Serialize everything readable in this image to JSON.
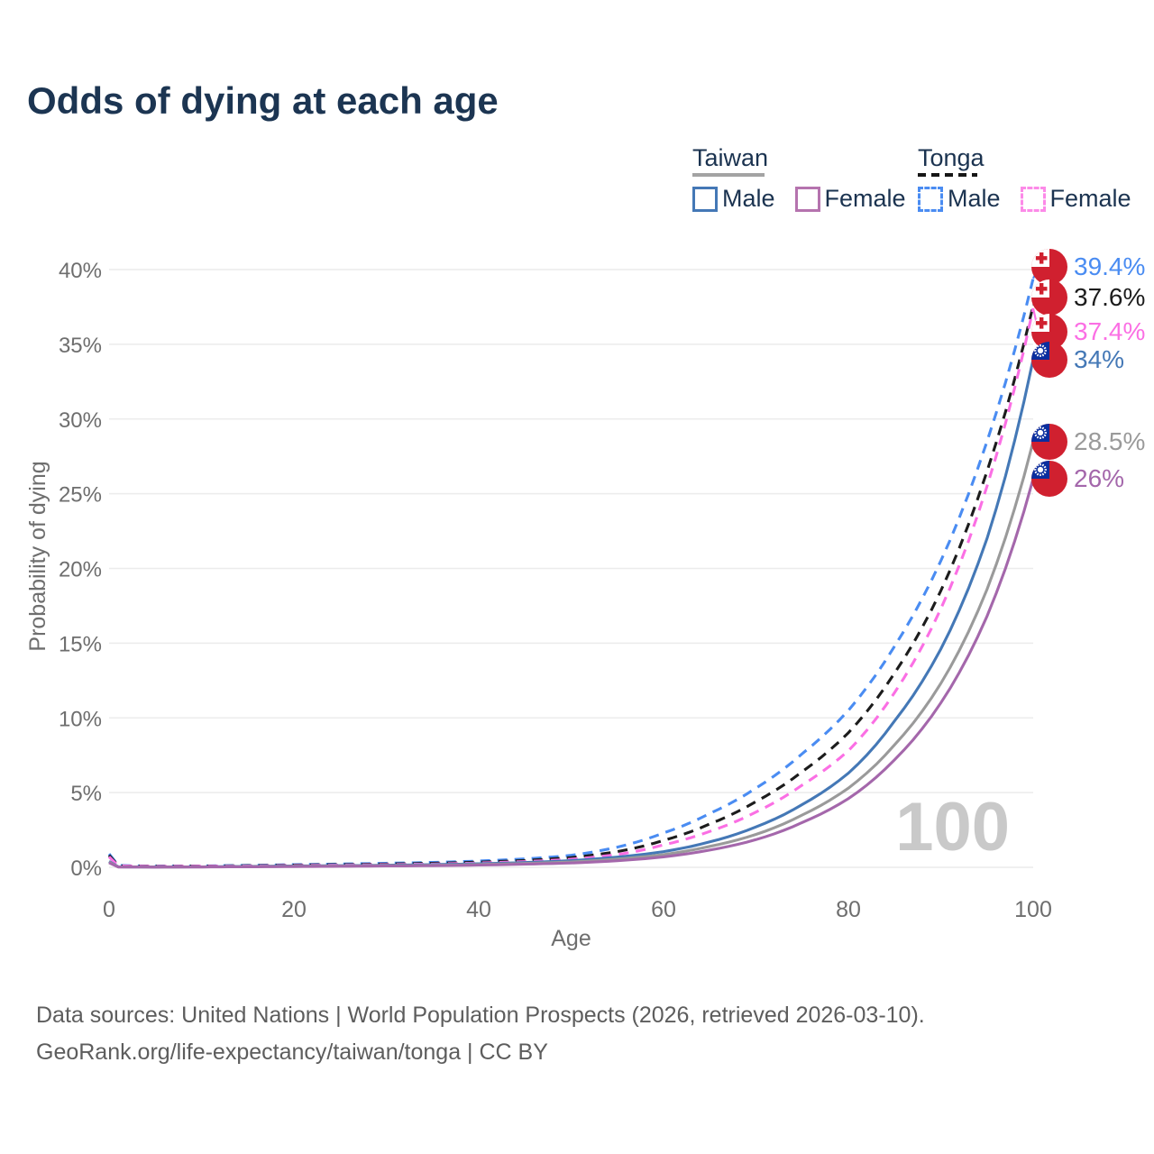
{
  "title": "Odds of dying at each age",
  "legend": {
    "groups": [
      {
        "country": "Taiwan",
        "style": "solid",
        "underline_color": "#a3a3a3",
        "items": [
          {
            "label": "Male",
            "color": "#4478b6"
          },
          {
            "label": "Female",
            "color": "#b573ae"
          }
        ]
      },
      {
        "country": "Tonga",
        "style": "dashed",
        "underline_color": "#161616",
        "items": [
          {
            "label": "Male",
            "color": "#4a8cf2"
          },
          {
            "label": "Female",
            "color": "#fc8ae8"
          }
        ]
      }
    ]
  },
  "watermark": "100",
  "footer": {
    "line1": "Data sources: United Nations | World Population Prospects (2026, retrieved 2026-03-10).",
    "line2": "GeoRank.org/life-expectancy/taiwan/tonga | CC BY"
  },
  "chart_data": {
    "type": "line",
    "title": "Odds of dying at each age",
    "xlabel": "Age",
    "ylabel": "Probability of dying",
    "xlim": [
      0,
      100
    ],
    "ylim": [
      0,
      40
    ],
    "x_ticks": [
      0,
      20,
      40,
      60,
      80,
      100
    ],
    "y_ticks_pct": [
      0,
      5,
      10,
      15,
      20,
      25,
      30,
      35,
      40
    ],
    "grid": true,
    "legend_position": "top-right",
    "ages": [
      0,
      1,
      5,
      10,
      15,
      20,
      25,
      30,
      35,
      40,
      45,
      50,
      55,
      60,
      65,
      70,
      75,
      80,
      85,
      90,
      95,
      100
    ],
    "series": [
      {
        "name": "Tonga Male",
        "country": "Tonga",
        "sex": "Male",
        "style": "dashed",
        "color": "#4a8cf2",
        "flag": "tonga",
        "end_value": 39.4,
        "end_label": "39.4%",
        "values": [
          0.9,
          0.12,
          0.08,
          0.09,
          0.13,
          0.18,
          0.22,
          0.27,
          0.33,
          0.42,
          0.56,
          0.8,
          1.35,
          2.3,
          3.6,
          5.3,
          7.6,
          10.5,
          14.8,
          20.5,
          28.5,
          39.4
        ]
      },
      {
        "name": "Tonga All",
        "country": "Tonga",
        "sex": "All",
        "style": "dashed",
        "color": "#1c1c1c",
        "flag": "tonga",
        "end_value": 37.6,
        "end_label": "37.6%",
        "values": [
          0.8,
          0.1,
          0.07,
          0.08,
          0.11,
          0.15,
          0.18,
          0.22,
          0.27,
          0.35,
          0.46,
          0.65,
          1.05,
          1.8,
          2.9,
          4.4,
          6.4,
          9.0,
          13.0,
          18.5,
          26.5,
          37.6
        ]
      },
      {
        "name": "Tonga Female",
        "country": "Tonga",
        "sex": "Female",
        "style": "dashed",
        "color": "#fb6fe4",
        "flag": "tonga",
        "end_value": 37.4,
        "end_label": "37.4%",
        "values": [
          0.7,
          0.09,
          0.06,
          0.07,
          0.09,
          0.12,
          0.15,
          0.18,
          0.22,
          0.29,
          0.38,
          0.54,
          0.85,
          1.5,
          2.4,
          3.7,
          5.5,
          7.8,
          11.7,
          17.3,
          25.5,
          37.4
        ]
      },
      {
        "name": "Taiwan Male",
        "country": "Taiwan",
        "sex": "Male",
        "style": "solid",
        "color": "#4478b6",
        "flag": "taiwan",
        "end_value": 34,
        "end_label": "34%",
        "values": [
          0.4,
          0.03,
          0.02,
          0.03,
          0.06,
          0.09,
          0.11,
          0.14,
          0.18,
          0.24,
          0.32,
          0.45,
          0.68,
          1.05,
          1.7,
          2.7,
          4.2,
          6.3,
          9.8,
          14.6,
          22.0,
          34.0
        ]
      },
      {
        "name": "Taiwan All",
        "country": "Taiwan",
        "sex": "All",
        "style": "solid",
        "color": "#9a9a9a",
        "flag": "taiwan",
        "end_value": 28.5,
        "end_label": "28.5%",
        "values": [
          0.35,
          0.025,
          0.018,
          0.025,
          0.045,
          0.07,
          0.09,
          0.11,
          0.14,
          0.19,
          0.26,
          0.36,
          0.55,
          0.85,
          1.4,
          2.2,
          3.5,
          5.3,
          8.2,
          12.3,
          18.6,
          28.5
        ]
      },
      {
        "name": "Taiwan Female",
        "country": "Taiwan",
        "sex": "Female",
        "style": "solid",
        "color": "#a467ab",
        "flag": "taiwan",
        "end_value": 26,
        "end_label": "26%",
        "values": [
          0.3,
          0.02,
          0.015,
          0.02,
          0.035,
          0.05,
          0.07,
          0.09,
          0.11,
          0.15,
          0.21,
          0.29,
          0.44,
          0.7,
          1.15,
          1.85,
          3.0,
          4.6,
          7.2,
          11.0,
          16.8,
          26.0
        ]
      }
    ]
  }
}
